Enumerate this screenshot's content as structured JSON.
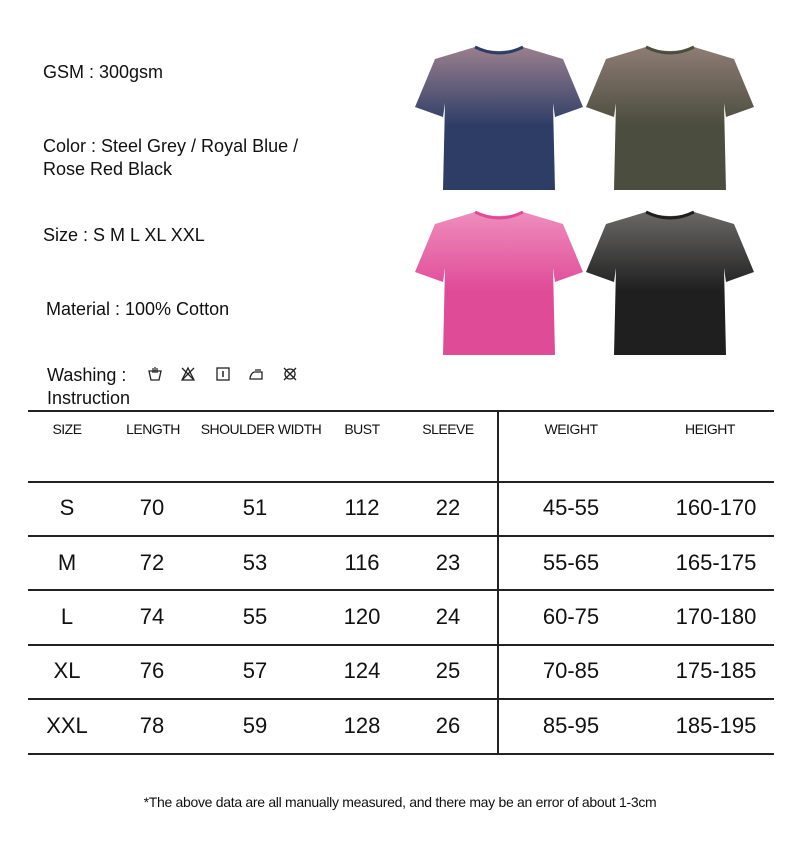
{
  "specs": {
    "gsm": "GSM : 300gsm",
    "color_line1": "Color : Steel Grey / Royal Blue /",
    "color_line2": "Rose Red Black",
    "size": "Size : S M L XL XXL",
    "material": "Material : 100% Cotton",
    "washing_label": "Washing :",
    "washing_label2": "Instruction",
    "washing_icons": [
      "hand-wash-icon",
      "do-not-bleach-icon",
      "tumble-dry-icon",
      "iron-icon",
      "do-not-dry-clean-icon"
    ]
  },
  "shirts": [
    {
      "name": "Royal Blue",
      "top": "#9a7f8e",
      "bottom": "#2d3d66"
    },
    {
      "name": "Steel Grey",
      "top": "#8e7c74",
      "bottom": "#4b4d3e"
    },
    {
      "name": "Rose Red",
      "top": "#ee8dbd",
      "bottom": "#e04b98"
    },
    {
      "name": "Black",
      "top": "#6a6867",
      "bottom": "#1f1f1f"
    }
  ],
  "table": {
    "headers": [
      "SIZE",
      "LENGTH",
      "SHOULDER WIDTH",
      "BUST",
      "SLEEVE",
      "WEIGHT",
      "HEIGHT"
    ],
    "rows": [
      [
        "S",
        "70",
        "51",
        "112",
        "22",
        "45-55",
        "160-170"
      ],
      [
        "M",
        "72",
        "53",
        "116",
        "23",
        "55-65",
        "165-175"
      ],
      [
        "L",
        "74",
        "55",
        "120",
        "24",
        "60-75",
        "170-180"
      ],
      [
        "XL",
        "76",
        "57",
        "124",
        "25",
        "70-85",
        "175-185"
      ],
      [
        "XXL",
        "78",
        "59",
        "128",
        "26",
        "85-95",
        "185-195"
      ]
    ]
  },
  "note": "*The above data are all manually measured, and there may be an error of about 1-3cm"
}
